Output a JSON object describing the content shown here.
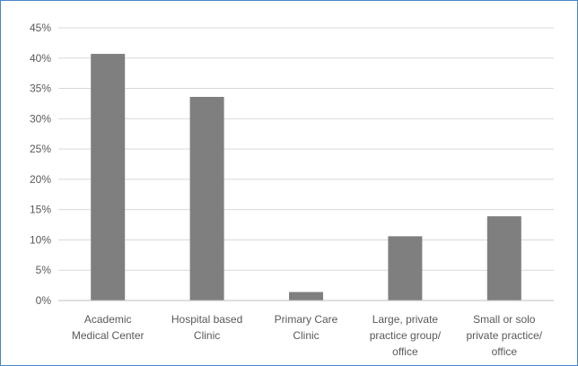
{
  "chart_data": {
    "type": "bar",
    "title": "",
    "xlabel": "",
    "ylabel": "",
    "categories": [
      [
        "Academic",
        "Medical Center"
      ],
      [
        "Hospital based",
        "Clinic"
      ],
      [
        "Primary Care",
        "Clinic"
      ],
      [
        "Large, private",
        "practice group/",
        "office"
      ],
      [
        "Small or solo",
        "private practice/",
        "office"
      ]
    ],
    "values": [
      40.7,
      33.6,
      1.4,
      10.6,
      13.9
    ],
    "ylim": [
      0,
      45
    ],
    "yticks": [
      0,
      5,
      10,
      15,
      20,
      25,
      30,
      35,
      40,
      45
    ],
    "ytick_format": "{v}%",
    "grid": true,
    "legend": false,
    "colors": {
      "bar": "#7f7f7f",
      "grid": "#d9d9d9",
      "axis": "#bfbfbf",
      "text": "#595959",
      "border": "#4a86c6"
    }
  }
}
